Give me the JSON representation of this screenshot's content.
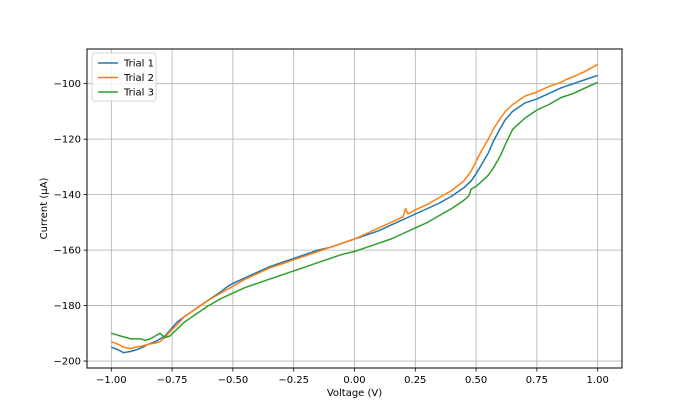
{
  "chart_data": {
    "type": "line",
    "title": "",
    "xlabel": "Voltage (V)",
    "ylabel": "Current (μA)",
    "xlim": [
      -1.1,
      1.1
    ],
    "ylim": [
      -202.5,
      -87.5
    ],
    "xticks": [
      -1.0,
      -0.75,
      -0.5,
      -0.25,
      0.0,
      0.25,
      0.5,
      0.75,
      1.0
    ],
    "xtick_labels": [
      "−1.00",
      "−0.75",
      "−0.50",
      "−0.25",
      "0.00",
      "0.25",
      "0.50",
      "0.75",
      "1.00"
    ],
    "yticks": [
      -200,
      -180,
      -160,
      -140,
      -120,
      -100
    ],
    "ytick_labels": [
      "−200",
      "−180",
      "−160",
      "−140",
      "−120",
      "−100"
    ],
    "grid": true,
    "legend_position": "top-left",
    "series": [
      {
        "name": "Trial 1",
        "color": "#1f77b4",
        "x": [
          -1.0,
          -0.97,
          -0.95,
          -0.92,
          -0.9,
          -0.87,
          -0.85,
          -0.82,
          -0.8,
          -0.78,
          -0.76,
          -0.73,
          -0.7,
          -0.65,
          -0.6,
          -0.55,
          -0.52,
          -0.51,
          -0.5,
          -0.45,
          -0.4,
          -0.35,
          -0.3,
          -0.25,
          -0.2,
          -0.15,
          -0.1,
          -0.05,
          0.0,
          0.05,
          0.1,
          0.15,
          0.2,
          0.25,
          0.3,
          0.35,
          0.4,
          0.45,
          0.48,
          0.5,
          0.52,
          0.55,
          0.57,
          0.6,
          0.62,
          0.65,
          0.7,
          0.75,
          0.8,
          0.85,
          0.9,
          0.95,
          1.0
        ],
        "y": [
          -195,
          -196,
          -197,
          -196.5,
          -196,
          -195,
          -194,
          -193,
          -192,
          -191,
          -189,
          -186,
          -184,
          -181,
          -178,
          -175,
          -173,
          -172.5,
          -172,
          -170,
          -168,
          -166,
          -164.5,
          -163,
          -161.5,
          -160,
          -159,
          -157.5,
          -156,
          -154.5,
          -153,
          -151,
          -149,
          -147,
          -145,
          -143,
          -140.5,
          -137.5,
          -135,
          -132.5,
          -129.5,
          -125,
          -121,
          -116,
          -113,
          -110,
          -107,
          -105.5,
          -103.5,
          -101.5,
          -100,
          -98.5,
          -97
        ]
      },
      {
        "name": "Trial 2",
        "color": "#ff7f0e",
        "x": [
          -1.0,
          -0.97,
          -0.95,
          -0.92,
          -0.9,
          -0.87,
          -0.85,
          -0.82,
          -0.8,
          -0.78,
          -0.76,
          -0.73,
          -0.7,
          -0.65,
          -0.6,
          -0.55,
          -0.5,
          -0.45,
          -0.4,
          -0.35,
          -0.3,
          -0.25,
          -0.2,
          -0.15,
          -0.1,
          -0.05,
          0.0,
          0.05,
          0.1,
          0.15,
          0.2,
          0.21,
          0.22,
          0.25,
          0.3,
          0.35,
          0.4,
          0.45,
          0.48,
          0.5,
          0.52,
          0.55,
          0.57,
          0.6,
          0.62,
          0.65,
          0.7,
          0.75,
          0.8,
          0.85,
          0.87,
          0.9,
          0.95,
          1.0
        ],
        "y": [
          -193,
          -194,
          -195,
          -195.5,
          -195,
          -194.5,
          -194,
          -193.5,
          -193,
          -191.5,
          -189.5,
          -187,
          -184,
          -181,
          -178,
          -175.5,
          -173,
          -170.5,
          -168.5,
          -166.5,
          -165,
          -163.5,
          -162,
          -160.5,
          -159,
          -157.5,
          -156,
          -154,
          -152,
          -150,
          -148,
          -145,
          -147,
          -145.5,
          -143.5,
          -141,
          -138.5,
          -135,
          -131.5,
          -128,
          -124.5,
          -120,
          -116.5,
          -112.5,
          -110,
          -107.5,
          -104.5,
          -103,
          -101,
          -99.5,
          -98.5,
          -97.5,
          -95.5,
          -93
        ]
      },
      {
        "name": "Trial 3",
        "color": "#2ca02c",
        "x": [
          -1.0,
          -0.98,
          -0.96,
          -0.94,
          -0.92,
          -0.9,
          -0.88,
          -0.86,
          -0.84,
          -0.82,
          -0.8,
          -0.78,
          -0.76,
          -0.73,
          -0.7,
          -0.65,
          -0.6,
          -0.55,
          -0.5,
          -0.45,
          -0.4,
          -0.35,
          -0.3,
          -0.25,
          -0.2,
          -0.15,
          -0.1,
          -0.05,
          0.0,
          0.05,
          0.1,
          0.15,
          0.2,
          0.25,
          0.3,
          0.35,
          0.4,
          0.45,
          0.47,
          0.48,
          0.5,
          0.52,
          0.55,
          0.57,
          0.6,
          0.62,
          0.65,
          0.7,
          0.75,
          0.8,
          0.85,
          0.9,
          0.95,
          1.0
        ],
        "y": [
          -190,
          -190.5,
          -191,
          -191.5,
          -192,
          -192,
          -192,
          -192.5,
          -192,
          -191,
          -190,
          -191.5,
          -191,
          -188.5,
          -186,
          -183,
          -180,
          -177.5,
          -175.5,
          -173.5,
          -172,
          -170.5,
          -169,
          -167.5,
          -166,
          -164.5,
          -163,
          -161.5,
          -160.5,
          -159,
          -157.5,
          -156,
          -154,
          -152,
          -150,
          -147.5,
          -145,
          -142,
          -140.5,
          -138,
          -137,
          -135.5,
          -133,
          -130.5,
          -126,
          -122,
          -116.5,
          -112.5,
          -109.5,
          -107.5,
          -105,
          -103.5,
          -101.5,
          -99.5
        ]
      }
    ]
  }
}
